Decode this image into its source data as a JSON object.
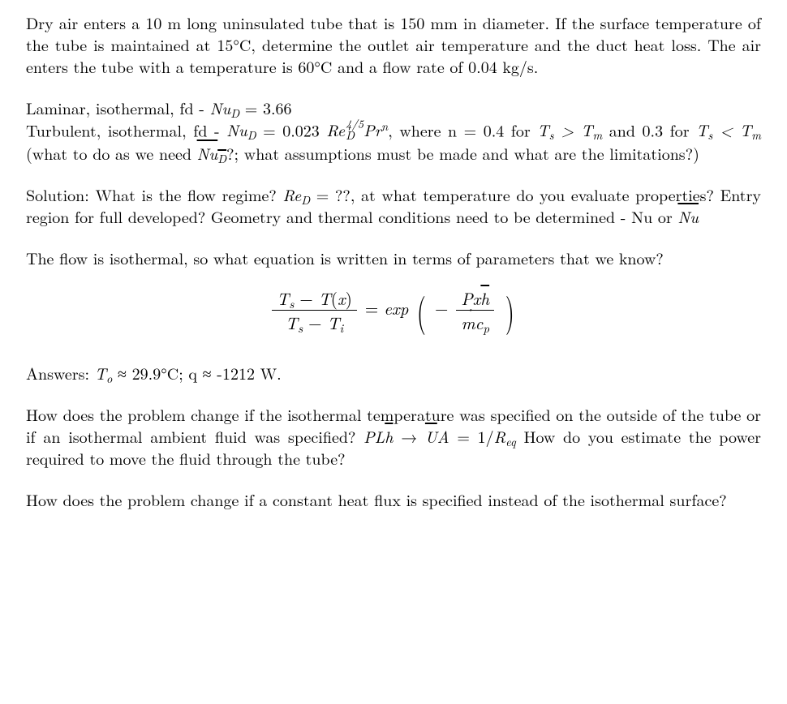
{
  "typography": {
    "font_family": "CMU Serif / Latin Modern Roman",
    "body_fontsize_pt": 15,
    "line_height": 1.35,
    "text_color": "#000000",
    "background_color": "#ffffff",
    "text_align": "justify",
    "equation_fontsize_pt": 16
  },
  "paragraphs": {
    "p1_a": "Dry air enters a 10 m long uninsulated tube that is 150 mm in diameter. If the surface temperature of the tube is maintained at 15",
    "degC": "°C",
    "p1_b": ", determine the outlet air temperature and the duct heat loss. The air enters the tube with a temperature is 60",
    "p1_c": " and a flow rate of 0.04 kg/s.",
    "p2_a": "Laminar, isothermal, fd - ",
    "NuD": "Nu",
    "eq_sym": " = ",
    "val_3_66": "3.66",
    "p2_b": "Turbulent, isothermal, fd - ",
    "val_0023": "0.023 ",
    "Re": "Re",
    "Pr": "Pr",
    "exp_4_5": "4/5",
    "exp_n": "n",
    "p2_c": ", where n = 0.4 for ",
    "p2_d": " and 0.3 for ",
    "p2_e": " (what to do as we need ",
    "p2_f": "?; what assumptions must be made and what are the limitations?)",
    "p3_a": "Solution: What is the flow regime? ",
    "p3_b": " = ??, at what temperature do you evaluate properties? Entry region for full developed? Geometry and thermal conditions need to be determined - Nu or ",
    "p4": "The flow is isothermal, so what equation is written in terms of parameters that we know?",
    "eq_lhs_num_a": "T",
    "eq_lhs_num_b": " − ",
    "eq_lhs_num_c": "T",
    "eq_lhs_num_d": "(",
    "eq_lhs_num_e": "x",
    "eq_lhs_num_f": ")",
    "eq_lhs_den_a": "T",
    "eq_lhs_den_b": " − ",
    "eq_lhs_den_c": "T",
    "eq_mid": " = ",
    "eq_exp": "exp",
    "eq_neg": "−",
    "eq_rhs_num_a": "P",
    "eq_rhs_num_b": "x",
    "eq_rhs_num_c": "h",
    "eq_rhs_den_a": "m",
    "eq_rhs_den_b": "c",
    "p5_a": "Answers: ",
    "p5_b": " ≈ 29.9",
    "p5_c": "; q ≈ -1212 W.",
    "p6_a": "How does the problem change if the isothermal temperature was specified on the outside of the tube or if an isothermal ambient fluid was specified? ",
    "p6_b": " → ",
    "p6_c": " = 1/",
    "p6_d": " How do you estimate the power required to move the fluid through the tube?",
    "p7": "How does the problem change if a constant heat flux is specified instead of the isothermal surface?",
    "subs": {
      "D": "D",
      "s": "s",
      "m": "m",
      "i": "i",
      "o": "o",
      "p": "p",
      "eq": "eq"
    },
    "values": {
      "tube_length_m": 10,
      "diameter_mm": 150,
      "surface_temp_C": 15,
      "inlet_temp_C": 60,
      "mass_flow_kg_s": 0.04,
      "laminar_NuD": 3.66,
      "turb_coeff": 0.023,
      "turb_exp_Re": "4/5",
      "turb_n_heating": 0.4,
      "turb_n_cooling": 0.3,
      "answer_To_C": 29.9,
      "answer_q_W": -1212
    }
  }
}
